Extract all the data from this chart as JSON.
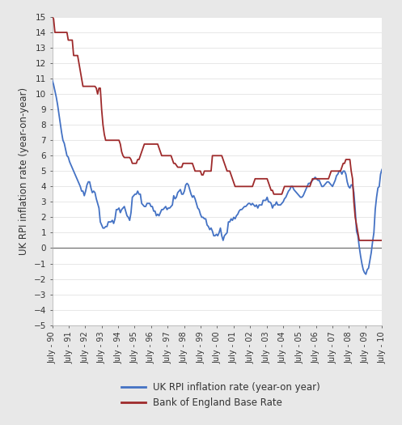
{
  "ylabel": "UK RPI inflation rate (year-on-year)",
  "ylim": [
    -5,
    15
  ],
  "yticks": [
    -5,
    -4,
    -3,
    -2,
    -1,
    0,
    1,
    2,
    3,
    4,
    5,
    6,
    7,
    8,
    9,
    10,
    11,
    12,
    13,
    14,
    15
  ],
  "bg_color": "#e8e8e8",
  "plot_bg_color": "#ffffff",
  "rpi_color": "#4472c4",
  "boe_color": "#9e2a2b",
  "legend_rpi": "UK RPI inflation rate (year-on year)",
  "legend_boe": "Bank of England Base Rate",
  "xtick_labels": [
    "July - 90",
    "July - 91",
    "July - 92",
    "July - 93",
    "July - 94",
    "July - 95",
    "July - 96",
    "July - 97",
    "July - 98",
    "July - 99",
    "July - 00",
    "July - 01",
    "July - 02",
    "July - 03",
    "July - 04",
    "July - 05",
    "July - 06",
    "July - 07",
    "July - 08",
    "July - 09",
    "July - 10"
  ],
  "rpi_monthly": [
    10.9,
    10.6,
    10.2,
    9.8,
    9.3,
    8.7,
    8.1,
    7.5,
    7.0,
    6.8,
    6.4,
    6.0,
    5.9,
    5.6,
    5.4,
    5.2,
    5.0,
    4.8,
    4.6,
    4.4,
    4.2,
    4.0,
    3.7,
    3.7,
    3.4,
    3.7,
    4.1,
    4.3,
    4.3,
    3.9,
    3.6,
    3.7,
    3.6,
    3.2,
    2.9,
    2.6,
    1.7,
    1.5,
    1.3,
    1.3,
    1.4,
    1.4,
    1.7,
    1.7,
    1.7,
    1.8,
    1.6,
    1.9,
    2.5,
    2.5,
    2.6,
    2.3,
    2.5,
    2.6,
    2.7,
    2.4,
    2.1,
    2.0,
    1.8,
    2.3,
    3.3,
    3.4,
    3.5,
    3.5,
    3.7,
    3.5,
    3.5,
    2.9,
    2.8,
    2.7,
    2.7,
    2.9,
    2.9,
    2.9,
    2.7,
    2.7,
    2.4,
    2.4,
    2.1,
    2.2,
    2.1,
    2.3,
    2.5,
    2.5,
    2.6,
    2.7,
    2.5,
    2.6,
    2.6,
    2.7,
    2.8,
    3.4,
    3.2,
    3.3,
    3.6,
    3.7,
    3.8,
    3.5,
    3.5,
    3.7,
    4.1,
    4.2,
    4.1,
    3.8,
    3.5,
    3.3,
    3.4,
    3.2,
    2.9,
    2.6,
    2.5,
    2.2,
    2.0,
    2.0,
    1.9,
    1.9,
    1.5,
    1.4,
    1.2,
    1.3,
    1.1,
    0.8,
    0.8,
    0.9,
    0.8,
    1.0,
    1.3,
    0.8,
    0.5,
    0.8,
    0.9,
    1.0,
    1.7,
    1.7,
    1.9,
    1.8,
    2.0,
    1.9,
    2.1,
    2.2,
    2.4,
    2.5,
    2.5,
    2.6,
    2.7,
    2.7,
    2.8,
    2.9,
    2.9,
    2.8,
    2.9,
    2.8,
    2.7,
    2.8,
    2.6,
    2.8,
    2.8,
    2.8,
    3.1,
    3.1,
    3.1,
    3.3,
    3.0,
    3.0,
    2.9,
    2.6,
    2.8,
    2.8,
    3.0,
    2.8,
    2.8,
    2.8,
    2.9,
    3.0,
    3.2,
    3.3,
    3.5,
    3.7,
    3.8,
    4.0,
    4.0,
    3.8,
    3.7,
    3.6,
    3.5,
    3.4,
    3.3,
    3.3,
    3.4,
    3.6,
    3.8,
    4.0,
    4.2,
    4.2,
    4.3,
    4.4,
    4.5,
    4.6,
    4.5,
    4.4,
    4.4,
    4.2,
    4.0,
    4.0,
    4.1,
    4.2,
    4.3,
    4.3,
    4.2,
    4.1,
    4.0,
    4.2,
    4.4,
    4.7,
    4.8,
    5.0,
    5.0,
    4.8,
    5.0,
    5.0,
    4.8,
    4.3,
    4.0,
    3.9,
    4.1,
    4.1,
    3.6,
    2.5,
    1.1,
    0.8,
    0.1,
    -0.5,
    -1.0,
    -1.4,
    -1.6,
    -1.7,
    -1.4,
    -1.3,
    -0.8,
    -0.3,
    0.4,
    1.0,
    2.5,
    3.3,
    3.9,
    4.0,
    4.8,
    5.1
  ],
  "boe_monthly": [
    15.0,
    14.88,
    14.0,
    14.0,
    14.0,
    14.0,
    14.0,
    14.0,
    14.0,
    14.0,
    14.0,
    14.0,
    13.5,
    13.5,
    13.5,
    13.5,
    12.5,
    12.5,
    12.5,
    12.5,
    12.0,
    11.5,
    11.0,
    10.5,
    10.5,
    10.5,
    10.5,
    10.5,
    10.5,
    10.5,
    10.5,
    10.5,
    10.5,
    10.38,
    10.0,
    10.38,
    10.38,
    9.0,
    8.0,
    7.38,
    7.0,
    7.0,
    7.0,
    7.0,
    7.0,
    7.0,
    7.0,
    7.0,
    7.0,
    7.0,
    7.0,
    6.75,
    6.25,
    6.0,
    5.88,
    5.88,
    5.88,
    5.88,
    5.88,
    5.75,
    5.5,
    5.5,
    5.5,
    5.5,
    5.75,
    5.75,
    6.0,
    6.25,
    6.5,
    6.75,
    6.75,
    6.75,
    6.75,
    6.75,
    6.75,
    6.75,
    6.75,
    6.75,
    6.75,
    6.75,
    6.5,
    6.25,
    6.0,
    6.0,
    6.0,
    6.0,
    6.0,
    6.0,
    6.0,
    6.0,
    5.75,
    5.5,
    5.5,
    5.38,
    5.25,
    5.25,
    5.25,
    5.25,
    5.5,
    5.5,
    5.5,
    5.5,
    5.5,
    5.5,
    5.5,
    5.5,
    5.25,
    5.0,
    5.0,
    5.0,
    5.0,
    5.0,
    4.75,
    4.75,
    5.0,
    5.0,
    5.0,
    5.0,
    5.0,
    5.0,
    6.0,
    6.0,
    6.0,
    6.0,
    6.0,
    6.0,
    6.0,
    6.0,
    5.75,
    5.5,
    5.25,
    5.0,
    5.0,
    5.0,
    4.75,
    4.5,
    4.25,
    4.0,
    4.0,
    4.0,
    4.0,
    4.0,
    4.0,
    4.0,
    4.0,
    4.0,
    4.0,
    4.0,
    4.0,
    4.0,
    4.0,
    4.25,
    4.5,
    4.5,
    4.5,
    4.5,
    4.5,
    4.5,
    4.5,
    4.5,
    4.5,
    4.5,
    4.25,
    4.0,
    3.75,
    3.75,
    3.5,
    3.5,
    3.5,
    3.5,
    3.5,
    3.5,
    3.5,
    3.75,
    4.0,
    4.0,
    4.0,
    4.0,
    4.0,
    4.0,
    4.0,
    4.0,
    4.0,
    4.0,
    4.0,
    4.0,
    4.0,
    4.0,
    4.0,
    4.0,
    4.0,
    4.0,
    4.0,
    4.0,
    4.25,
    4.5,
    4.5,
    4.5,
    4.5,
    4.5,
    4.5,
    4.5,
    4.5,
    4.5,
    4.5,
    4.5,
    4.5,
    4.5,
    4.75,
    5.0,
    5.0,
    5.0,
    5.0,
    5.0,
    5.0,
    5.0,
    5.0,
    5.25,
    5.5,
    5.5,
    5.75,
    5.75,
    5.75,
    5.75,
    5.0,
    4.5,
    3.0,
    2.0,
    1.5,
    1.0,
    0.5,
    0.5,
    0.5,
    0.5,
    0.5,
    0.5,
    0.5,
    0.5,
    0.5,
    0.5,
    0.5,
    0.5,
    0.5,
    0.5,
    0.5,
    0.5,
    0.5,
    0.5
  ]
}
